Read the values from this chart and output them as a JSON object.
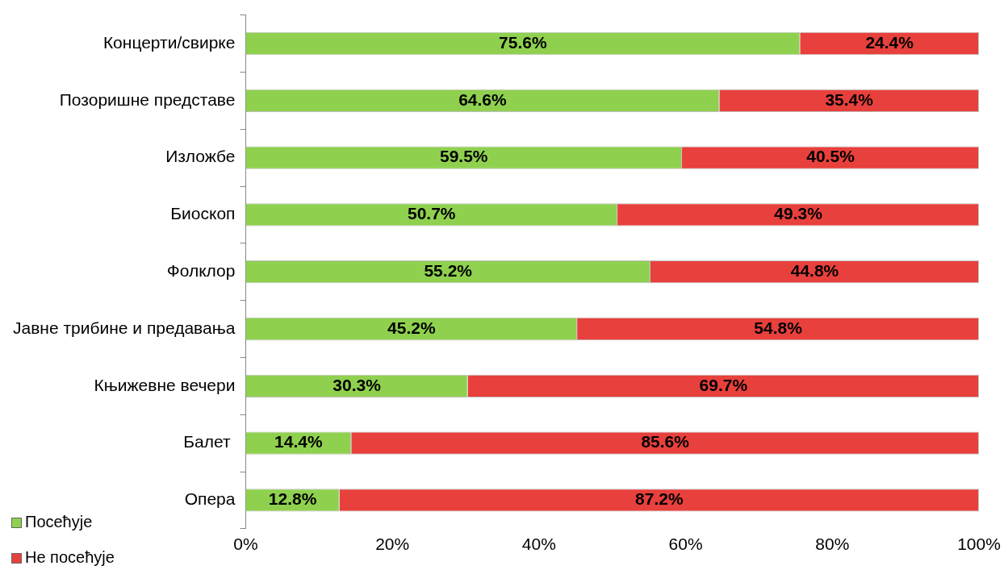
{
  "chart_data": {
    "type": "bar",
    "orientation": "horizontal",
    "stacked": true,
    "grid": false,
    "legend": "bottom left",
    "categories": [
      "Концерти/свирке",
      "Позоришне представе",
      "Изложбе",
      "Биоскоп",
      "Фолклор",
      "Јавне трибине и предавања",
      "Књижевне вечери",
      "Балет ",
      "Опера"
    ],
    "series": [
      {
        "name": "Посећује",
        "color": "#8fd14f",
        "values": [
          75.6,
          64.6,
          59.5,
          50.7,
          55.2,
          45.2,
          30.3,
          14.4,
          12.8
        ],
        "value_labels": [
          "75.6%",
          "64.6%",
          "59.5%",
          "50.7%",
          "55.2%",
          "45.2%",
          "30.3%",
          "14.4%",
          "12.8%"
        ]
      },
      {
        "name": "Не посећује",
        "color": "#e8403c",
        "values": [
          24.4,
          35.4,
          40.5,
          49.3,
          44.8,
          54.8,
          69.7,
          85.6,
          87.2
        ],
        "value_labels": [
          "24.4%",
          "35.4%",
          "40.5%",
          "49.3%",
          "44.8%",
          "54.8%",
          "69.7%",
          "85.6%",
          "87.2%"
        ]
      }
    ],
    "xlim": [
      0,
      100
    ],
    "xticks": [
      {
        "value": 0,
        "label": "0%"
      },
      {
        "value": 20,
        "label": "20%"
      },
      {
        "value": 40,
        "label": "40%"
      },
      {
        "value": 60,
        "label": "60%"
      },
      {
        "value": 80,
        "label": "80%"
      },
      {
        "value": 100,
        "label": "100%"
      }
    ]
  }
}
